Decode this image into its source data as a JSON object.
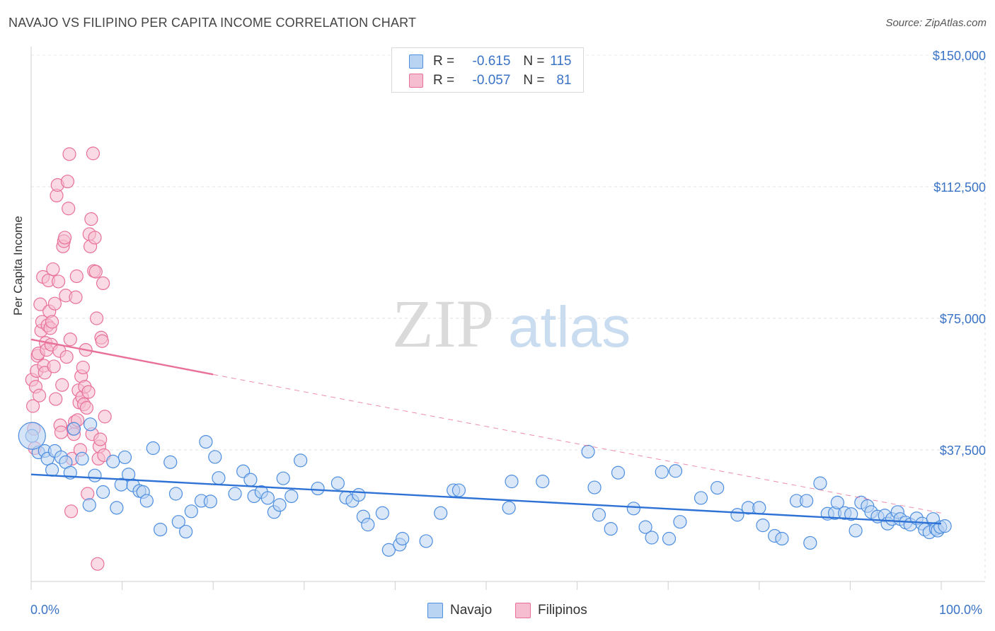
{
  "title": "NAVAJO VS FILIPINO PER CAPITA INCOME CORRELATION CHART",
  "source": "Source: ZipAtlas.com",
  "watermark": {
    "zip": "ZIP",
    "atlas": "atlas"
  },
  "colors": {
    "navajo": "#4d8ee0",
    "navajo_fill": "#b9d3f2",
    "filipino": "#e8709a",
    "filipino_fill": "#f6bdd0",
    "axis_text": "#3a73c6"
  },
  "legend": {
    "rows": [
      {
        "r_label": "R =",
        "r_value": "-0.615",
        "n_label": "N =",
        "n_value": "115"
      },
      {
        "r_label": "R =",
        "r_value": "-0.057",
        "n_label": "N =",
        "n_value": "81"
      }
    ]
  },
  "bottom_legend": {
    "navajo": "Navajo",
    "filipinos": "Filipinos"
  },
  "x_labels": {
    "left": "0.0%",
    "right": "100.0%"
  },
  "chart_data": {
    "type": "scatter",
    "title": "NAVAJO VS FILIPINO PER CAPITA INCOME CORRELATION CHART",
    "xlabel": "",
    "ylabel": "Per Capita Income",
    "xlim": [
      0,
      100
    ],
    "ylim": [
      0,
      150000
    ],
    "y_ticks": [
      {
        "value": 37500,
        "label": "$37,500"
      },
      {
        "value": 75000,
        "label": "$75,000"
      },
      {
        "value": 112500,
        "label": "$112,500"
      },
      {
        "value": 150000,
        "label": "$150,000"
      }
    ],
    "grid": true,
    "legend_position": "top-center",
    "trend_lines": [
      {
        "series": "Navajo",
        "x": [
          0,
          100
        ],
        "y": [
          30500,
          16500
        ],
        "style": "solid"
      },
      {
        "series": "Filipinos",
        "x": [
          0,
          20
        ],
        "y": [
          69000,
          59000
        ],
        "style": "solid"
      },
      {
        "series": "Filipinos",
        "x": [
          20,
          100
        ],
        "y": [
          59000,
          19500
        ],
        "style": "dashed"
      }
    ],
    "series": [
      {
        "name": "Navajo",
        "r": -0.615,
        "n": 115,
        "points": [
          [
            0.1,
            41500
          ],
          [
            0.8,
            36800
          ],
          [
            1.5,
            37200
          ],
          [
            1.8,
            35000
          ],
          [
            2.3,
            31800
          ],
          [
            2.6,
            37200
          ],
          [
            3.3,
            35400
          ],
          [
            3.8,
            34000
          ],
          [
            4.3,
            31000
          ],
          [
            4.7,
            43500
          ],
          [
            5.6,
            35000
          ],
          [
            6.5,
            44800
          ],
          [
            7.0,
            30200
          ],
          [
            6.4,
            21800
          ],
          [
            7.9,
            25500
          ],
          [
            9.0,
            34200
          ],
          [
            9.4,
            21000
          ],
          [
            9.9,
            27600
          ],
          [
            10.3,
            35400
          ],
          [
            10.7,
            30500
          ],
          [
            11.2,
            27400
          ],
          [
            11.9,
            25800
          ],
          [
            12.3,
            25500
          ],
          [
            12.7,
            23000
          ],
          [
            13.4,
            38000
          ],
          [
            14.2,
            14800
          ],
          [
            15.3,
            34000
          ],
          [
            15.9,
            25000
          ],
          [
            16.2,
            17000
          ],
          [
            17.0,
            14200
          ],
          [
            17.6,
            20000
          ],
          [
            18.7,
            23000
          ],
          [
            19.2,
            39800
          ],
          [
            19.7,
            22800
          ],
          [
            20.2,
            35500
          ],
          [
            20.6,
            29500
          ],
          [
            22.4,
            25000
          ],
          [
            23.3,
            31400
          ],
          [
            24.1,
            29000
          ],
          [
            24.5,
            24300
          ],
          [
            25.3,
            25500
          ],
          [
            26.0,
            23800
          ],
          [
            26.7,
            19800
          ],
          [
            27.3,
            21800
          ],
          [
            27.7,
            29400
          ],
          [
            28.6,
            24300
          ],
          [
            29.6,
            34500
          ],
          [
            31.5,
            26500
          ],
          [
            33.7,
            28000
          ],
          [
            34.6,
            23900
          ],
          [
            35.3,
            23000
          ],
          [
            36.0,
            24700
          ],
          [
            36.5,
            18500
          ],
          [
            37.0,
            16200
          ],
          [
            38.6,
            19500
          ],
          [
            39.3,
            9000
          ],
          [
            40.5,
            10500
          ],
          [
            40.8,
            12200
          ],
          [
            43.4,
            11500
          ],
          [
            45.0,
            19500
          ],
          [
            46.4,
            26000
          ],
          [
            47.0,
            26000
          ],
          [
            52.5,
            21000
          ],
          [
            52.8,
            28500
          ],
          [
            56.2,
            28500
          ],
          [
            61.2,
            37000
          ],
          [
            61.9,
            26800
          ],
          [
            62.4,
            19000
          ],
          [
            63.7,
            15000
          ],
          [
            64.5,
            31000
          ],
          [
            66.2,
            20800
          ],
          [
            67.5,
            15500
          ],
          [
            68.2,
            12500
          ],
          [
            69.3,
            31200
          ],
          [
            70.1,
            12200
          ],
          [
            70.8,
            31500
          ],
          [
            71.3,
            17000
          ],
          [
            73.6,
            23800
          ],
          [
            75.4,
            26700
          ],
          [
            77.6,
            19000
          ],
          [
            78.8,
            21000
          ],
          [
            80.0,
            21000
          ],
          [
            80.4,
            16000
          ],
          [
            81.7,
            13000
          ],
          [
            82.5,
            12200
          ],
          [
            84.1,
            23000
          ],
          [
            85.2,
            23000
          ],
          [
            85.6,
            11000
          ],
          [
            86.7,
            28000
          ],
          [
            87.5,
            19300
          ],
          [
            88.3,
            19500
          ],
          [
            88.6,
            22500
          ],
          [
            89.4,
            19500
          ],
          [
            90.1,
            19200
          ],
          [
            90.6,
            14500
          ],
          [
            91.2,
            22500
          ],
          [
            91.9,
            21500
          ],
          [
            92.3,
            19800
          ],
          [
            93.0,
            18500
          ],
          [
            93.8,
            18800
          ],
          [
            94.1,
            16500
          ],
          [
            94.6,
            17800
          ],
          [
            95.2,
            19800
          ],
          [
            95.5,
            17800
          ],
          [
            96.1,
            16800
          ],
          [
            96.6,
            16200
          ],
          [
            97.3,
            18000
          ],
          [
            97.9,
            16500
          ],
          [
            98.2,
            14800
          ],
          [
            98.7,
            14000
          ],
          [
            99.1,
            17800
          ],
          [
            99.4,
            15000
          ],
          [
            99.6,
            14500
          ],
          [
            99.9,
            15500
          ],
          [
            100.4,
            15800
          ]
        ]
      },
      {
        "name": "Filipinos",
        "r": -0.057,
        "n": 81,
        "points": [
          [
            0.1,
            57500
          ],
          [
            0.2,
            50000
          ],
          [
            0.3,
            43500
          ],
          [
            0.4,
            38000
          ],
          [
            0.5,
            55500
          ],
          [
            0.6,
            60000
          ],
          [
            0.7,
            64300
          ],
          [
            0.8,
            65000
          ],
          [
            0.9,
            53000
          ],
          [
            1.0,
            79000
          ],
          [
            1.1,
            71500
          ],
          [
            1.2,
            74000
          ],
          [
            1.3,
            86800
          ],
          [
            1.4,
            61500
          ],
          [
            1.5,
            59500
          ],
          [
            1.6,
            68000
          ],
          [
            1.7,
            66000
          ],
          [
            1.8,
            73000
          ],
          [
            1.9,
            85800
          ],
          [
            2.0,
            77000
          ],
          [
            2.1,
            72200
          ],
          [
            2.2,
            67500
          ],
          [
            2.3,
            74000
          ],
          [
            2.4,
            89000
          ],
          [
            2.5,
            61300
          ],
          [
            2.6,
            79200
          ],
          [
            2.7,
            52000
          ],
          [
            2.8,
            110000
          ],
          [
            2.9,
            113000
          ],
          [
            3.0,
            85500
          ],
          [
            3.1,
            65700
          ],
          [
            3.2,
            44500
          ],
          [
            3.3,
            42500
          ],
          [
            3.4,
            56000
          ],
          [
            3.5,
            95500
          ],
          [
            3.6,
            97000
          ],
          [
            3.7,
            98000
          ],
          [
            3.8,
            81500
          ],
          [
            3.9,
            64000
          ],
          [
            4.0,
            114000
          ],
          [
            4.1,
            106300
          ],
          [
            4.2,
            121800
          ],
          [
            4.3,
            69000
          ],
          [
            4.4,
            20000
          ],
          [
            4.5,
            35000
          ],
          [
            4.6,
            43500
          ],
          [
            4.7,
            42000
          ],
          [
            4.8,
            45500
          ],
          [
            4.9,
            81000
          ],
          [
            5.0,
            87000
          ],
          [
            5.1,
            46000
          ],
          [
            5.2,
            54500
          ],
          [
            5.3,
            51000
          ],
          [
            5.4,
            37500
          ],
          [
            5.5,
            58500
          ],
          [
            5.6,
            52500
          ],
          [
            5.7,
            61000
          ],
          [
            5.8,
            50500
          ],
          [
            5.9,
            55500
          ],
          [
            6.0,
            66000
          ],
          [
            6.1,
            49500
          ],
          [
            6.2,
            25000
          ],
          [
            6.3,
            54000
          ],
          [
            6.4,
            99000
          ],
          [
            6.5,
            95500
          ],
          [
            6.6,
            103300
          ],
          [
            6.7,
            42000
          ],
          [
            6.8,
            122000
          ],
          [
            6.9,
            88500
          ],
          [
            7.0,
            98000
          ],
          [
            7.1,
            88300
          ],
          [
            7.2,
            75000
          ],
          [
            7.3,
            5000
          ],
          [
            7.4,
            35000
          ],
          [
            7.5,
            38500
          ],
          [
            7.6,
            40500
          ],
          [
            7.7,
            69500
          ],
          [
            7.8,
            68500
          ],
          [
            7.9,
            85000
          ],
          [
            8.0,
            36000
          ],
          [
            8.1,
            47000
          ]
        ]
      }
    ]
  }
}
